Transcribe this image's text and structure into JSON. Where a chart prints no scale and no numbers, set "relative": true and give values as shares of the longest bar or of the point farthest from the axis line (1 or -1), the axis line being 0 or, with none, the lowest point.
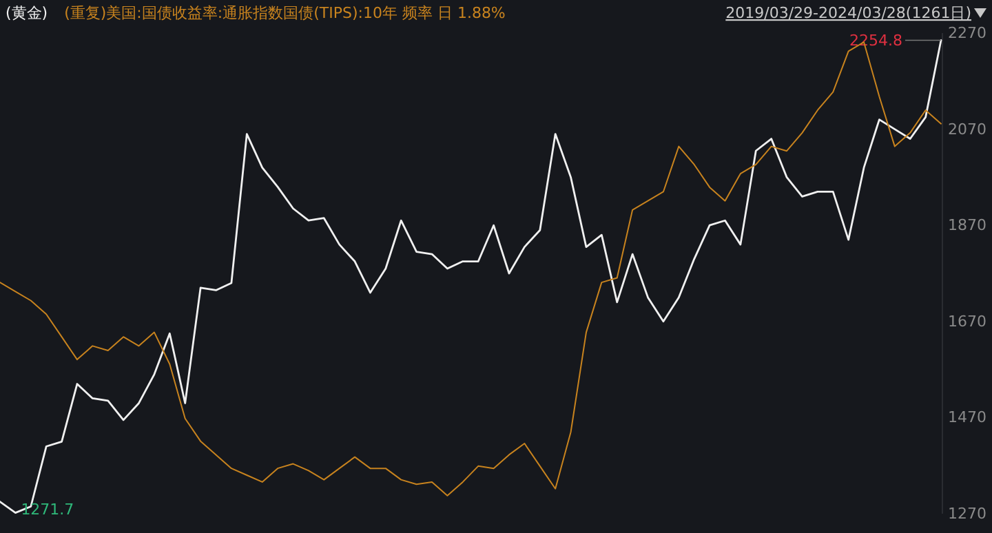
{
  "chart_data": [
    {
      "type": "line",
      "subtitle": "2019/03/29-2024/03/28(1261日)",
      "categories": [
        null,
        null,
        null,
        null,
        null,
        null,
        null,
        null,
        null,
        null,
        null,
        null,
        null,
        null,
        null,
        null,
        null,
        null,
        null,
        null,
        null,
        null,
        null,
        null,
        null,
        null,
        null,
        null,
        null,
        null,
        null,
        null,
        null,
        null,
        null,
        null,
        null,
        null,
        null,
        null,
        null,
        null,
        null,
        null,
        null,
        null,
        null,
        null,
        null,
        null,
        null,
        null,
        null,
        null,
        null,
        null,
        null,
        null,
        null,
        null,
        null,
        null
      ],
      "ylim": [
        1270,
        2270
      ],
      "yticks": [
        1270,
        1470,
        1670,
        1870,
        2070,
        2270
      ],
      "tick_labels": "y",
      "series": [
        {
          "name": "(黄金)",
          "color": "#f0f0f0",
          "values": [
            1295,
            1272,
            1285,
            1410,
            1420,
            1540,
            1510,
            1505,
            1465,
            1500,
            1560,
            1645,
            1500,
            1740,
            1735,
            1750,
            2060,
            1990,
            1950,
            1905,
            1880,
            1885,
            1830,
            1795,
            1730,
            1780,
            1880,
            1815,
            1810,
            1780,
            1795,
            1795,
            1870,
            1770,
            1825,
            1860,
            2060,
            1970,
            1825,
            1850,
            1710,
            1810,
            1720,
            1670,
            1720,
            1800,
            1870,
            1880,
            1830,
            2025,
            2050,
            1970,
            1930,
            1940,
            1940,
            1840,
            1990,
            2090,
            2070,
            2050,
            2095,
            2255
          ]
        }
      ],
      "annotations": [
        "2254.8",
        "1271.7"
      ]
    },
    {
      "type": "line",
      "relative": true,
      "tick_labels": false,
      "categories": [
        null,
        null,
        null,
        null,
        null,
        null,
        null,
        null,
        null,
        null,
        null,
        null,
        null,
        null,
        null,
        null,
        null,
        null,
        null,
        null,
        null,
        null,
        null,
        null,
        null,
        null,
        null,
        null,
        null,
        null,
        null,
        null,
        null,
        null,
        null,
        null,
        null,
        null,
        null,
        null,
        null,
        null,
        null,
        null,
        null,
        null,
        null,
        null,
        null,
        null,
        null,
        null,
        null,
        null,
        null,
        null,
        null,
        null,
        null,
        null,
        null,
        null
      ],
      "series": [
        {
          "name": "(重复)美国:国债收益率:通胀指数国债(TIPS):10年 频率 日 1.88%",
          "color": "#c8831e",
          "values": [
            0.47,
            0.45,
            0.43,
            0.4,
            0.35,
            0.3,
            0.33,
            0.32,
            0.35,
            0.33,
            0.36,
            0.29,
            0.17,
            0.12,
            0.09,
            0.06,
            0.045,
            0.03,
            0.06,
            0.07,
            0.055,
            0.035,
            0.06,
            0.085,
            0.06,
            0.06,
            0.035,
            0.025,
            0.03,
            0,
            0.03,
            0.065,
            0.06,
            0.09,
            0.115,
            0.065,
            0.015,
            0.14,
            0.36,
            0.47,
            0.48,
            0.63,
            0.65,
            0.67,
            0.77,
            0.73,
            0.68,
            0.65,
            0.71,
            0.73,
            0.77,
            0.76,
            0.8,
            0.85,
            0.89,
            0.98,
            1,
            0.88,
            0.77,
            0.8,
            0.85,
            0.82
          ]
        }
      ]
    }
  ]
}
